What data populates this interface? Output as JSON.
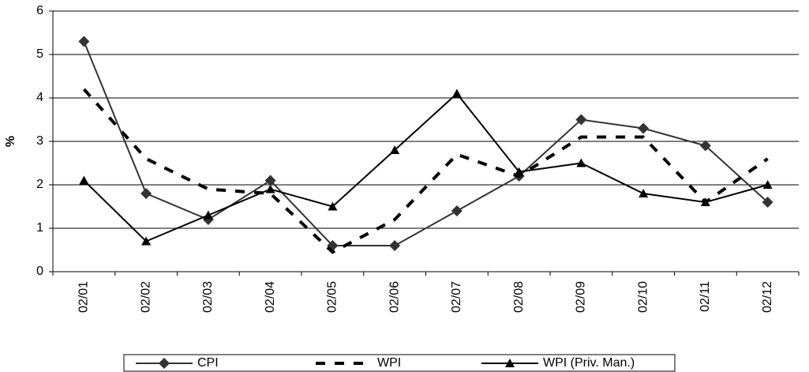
{
  "chart_data": {
    "type": "line",
    "y_label": "%",
    "categories": [
      "02/01",
      "02/02",
      "02/03",
      "02/04",
      "02/05",
      "02/06",
      "02/07",
      "02/08",
      "02/09",
      "02/10",
      "02/11",
      "02/12"
    ],
    "series": [
      {
        "name": "CPI",
        "color": "#333333",
        "line_style": "solid",
        "marker": "diamond",
        "values": [
          5.3,
          1.8,
          1.2,
          2.1,
          0.6,
          0.6,
          1.4,
          2.2,
          3.5,
          3.3,
          2.9,
          1.6
        ]
      },
      {
        "name": "WPI",
        "color": "#000000",
        "line_style": "dashed",
        "marker": "none",
        "values": [
          4.2,
          2.6,
          1.9,
          1.8,
          0.45,
          1.2,
          2.7,
          2.2,
          3.1,
          3.1,
          1.6,
          2.6
        ]
      },
      {
        "name": "WPI (Priv. Man.)",
        "color": "#000000",
        "line_style": "solid",
        "marker": "triangle",
        "values": [
          2.1,
          0.7,
          1.3,
          1.9,
          1.5,
          2.8,
          4.1,
          2.3,
          2.5,
          1.8,
          1.6,
          2.0
        ]
      }
    ],
    "ylim": [
      0,
      6
    ],
    "yticks": [
      0,
      1,
      2,
      3,
      4,
      5,
      6
    ],
    "grid": true
  }
}
